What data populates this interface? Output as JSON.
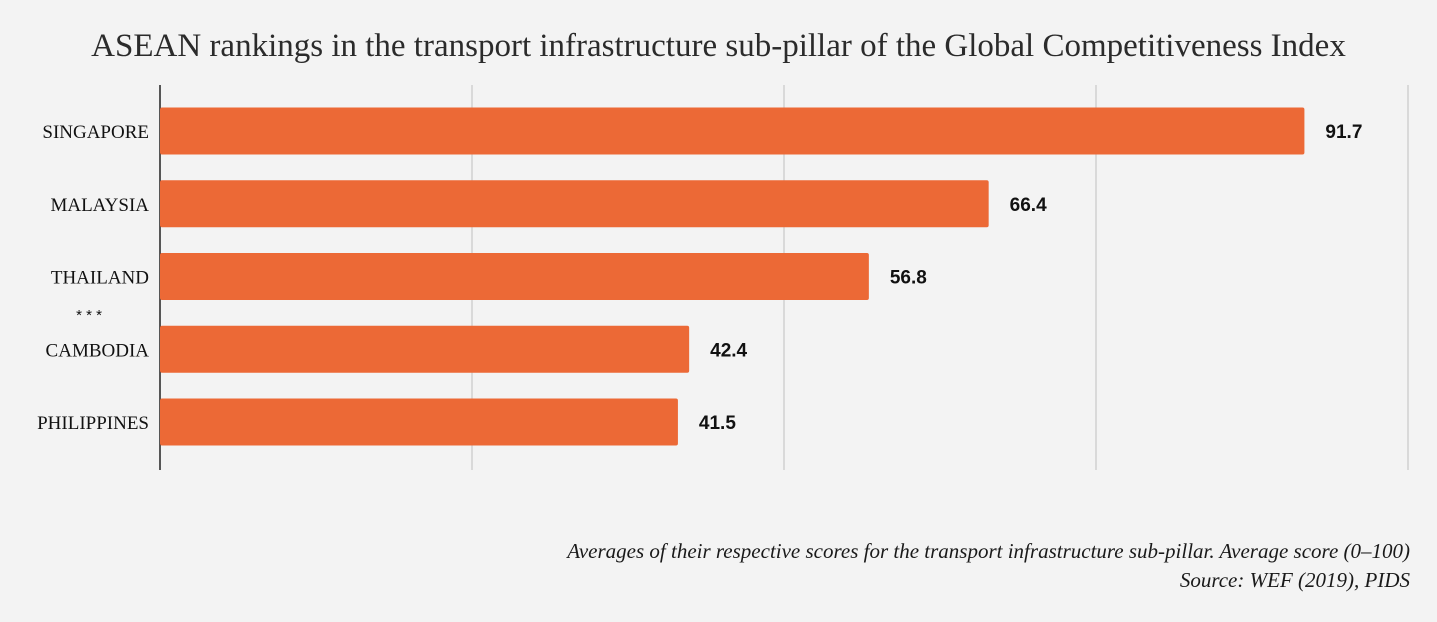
{
  "title": "ASEAN rankings in the transport infrastructure sub-pillar of the Global Competitiveness Index",
  "footnotes": {
    "description": "Averages of their respective scores for the transport infrastructure sub-pillar. Average score (0–100)",
    "source": "Source: WEF (2019), PIDS"
  },
  "separator": "* * *",
  "colors": {
    "bar": "#ec6936",
    "grid": "#c8c8c8",
    "axis": "#222222",
    "label": "#111111"
  },
  "chart_data": {
    "type": "bar",
    "orientation": "horizontal",
    "title": "ASEAN rankings in the transport infrastructure sub-pillar of the Global Competitiveness Index",
    "categories": [
      "SINGAPORE",
      "MALAYSIA",
      "THAILAND",
      "CAMBODIA",
      "PHILIPPINES"
    ],
    "values": [
      91.7,
      66.4,
      56.8,
      42.4,
      41.5
    ],
    "value_labels": [
      "91.7",
      "66.4",
      "56.8",
      "42.4",
      "41.5"
    ],
    "xlim": [
      0,
      100
    ],
    "gridlines": [
      0,
      25,
      50,
      75,
      100
    ],
    "grid": true,
    "xlabel": "",
    "ylabel": ""
  }
}
